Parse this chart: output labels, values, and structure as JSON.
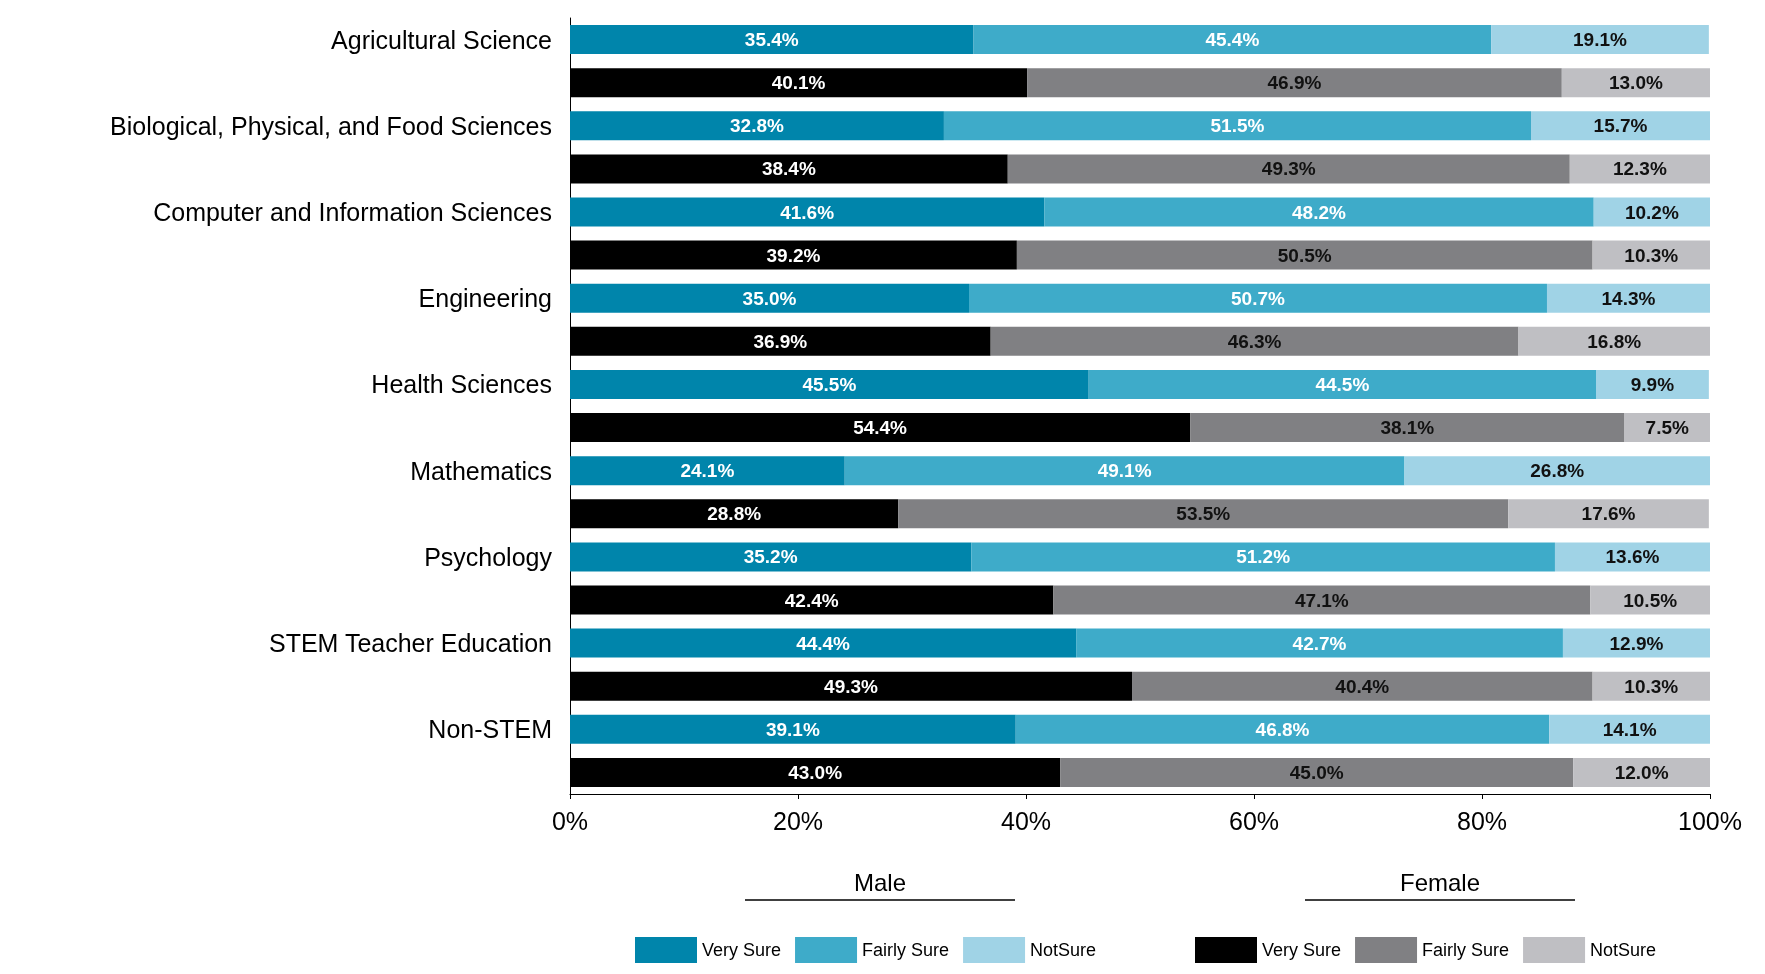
{
  "chart_data": {
    "type": "bar",
    "orientation": "horizontal",
    "stacked": true,
    "categories": [
      "Agricultural Science",
      null,
      "Biological, Physical, and Food Sciences",
      null,
      "Computer and Information Sciences",
      null,
      "Engineering",
      null,
      "Health Sciences",
      null,
      "Mathematics",
      null,
      "Psychology",
      null,
      "STEM Teacher Education",
      null,
      "Non-STEM",
      null
    ],
    "series": [
      {
        "name": "Very Sure",
        "color": "#0085ab",
        "values": [
          35.4,
          null,
          32.8,
          null,
          41.6,
          null,
          35.0,
          null,
          45.5,
          null,
          24.1,
          null,
          35.2,
          null,
          44.4,
          null,
          39.1,
          null
        ],
        "value_labels": [
          "35.4%",
          null,
          "32.8%",
          null,
          "41.6%",
          null,
          "35.0%",
          null,
          "45.5%",
          null,
          "24.1%",
          null,
          "35.2%",
          null,
          "44.4%",
          null,
          "39.1%",
          null
        ]
      },
      {
        "name": "Fairly Sure",
        "color": "#3eabc9",
        "values": [
          45.4,
          null,
          51.5,
          null,
          48.2,
          null,
          50.7,
          null,
          44.5,
          null,
          49.1,
          null,
          51.2,
          null,
          42.7,
          null,
          46.8,
          null
        ],
        "value_labels": [
          "45.4%",
          null,
          "51.5%",
          null,
          "48.2%",
          null,
          "50.7%",
          null,
          "44.5%",
          null,
          "49.1%",
          null,
          "51.2%",
          null,
          "42.7%",
          null,
          "46.8%",
          null
        ]
      },
      {
        "name": "NotSure",
        "color": "#a0d3e6",
        "values": [
          19.1,
          null,
          15.7,
          null,
          10.2,
          null,
          14.3,
          null,
          9.9,
          null,
          26.8,
          null,
          13.6,
          null,
          12.9,
          null,
          14.1,
          null
        ],
        "value_labels": [
          "19.1%",
          null,
          "15.7%",
          null,
          "10.2%",
          null,
          "14.3%",
          null,
          "9.9%",
          null,
          "26.8%",
          null,
          "13.6%",
          null,
          "12.9%",
          null,
          "14.1%",
          null
        ]
      },
      {
        "name": "Very Sure",
        "color": "#000000",
        "values": [
          null,
          40.1,
          null,
          38.4,
          null,
          39.2,
          null,
          36.9,
          null,
          54.4,
          null,
          28.8,
          null,
          42.4,
          null,
          49.3,
          null,
          43.0
        ],
        "value_labels": [
          null,
          "40.1%",
          null,
          "38.4%",
          null,
          "39.2%",
          null,
          "36.9%",
          null,
          "54.4%",
          null,
          "28.8%",
          null,
          "42.4%",
          null,
          "49.3%",
          null,
          "43.0%"
        ]
      },
      {
        "name": "Fairly Sure",
        "color": "#808083",
        "values": [
          null,
          46.9,
          null,
          49.3,
          null,
          50.5,
          null,
          46.3,
          null,
          38.1,
          null,
          53.5,
          null,
          47.1,
          null,
          40.4,
          null,
          45.0
        ],
        "value_labels": [
          null,
          "46.9%",
          null,
          "49.3%",
          null,
          "50.5%",
          null,
          "46.3%",
          null,
          "38.1%",
          null,
          "53.5%",
          null,
          "47.1%",
          null,
          "40.4%",
          null,
          "45.0%"
        ]
      },
      {
        "name": "NotSure",
        "color": "#bfbfc3",
        "values": [
          null,
          13.0,
          null,
          12.3,
          null,
          10.3,
          null,
          16.8,
          null,
          7.5,
          null,
          17.6,
          null,
          10.5,
          null,
          10.3,
          null,
          12.0
        ],
        "value_labels": [
          null,
          "13.0%",
          null,
          "12.3%",
          null,
          "10.3%",
          null,
          "16.8%",
          null,
          "7.5%",
          null,
          "17.6%",
          null,
          "10.5%",
          null,
          "10.3%",
          null,
          "12.0%"
        ]
      }
    ],
    "xlim": [
      0,
      100
    ],
    "xticks": [
      {
        "value": 0,
        "label": "0%"
      },
      {
        "value": 20,
        "label": "20%"
      },
      {
        "value": 40,
        "label": "40%"
      },
      {
        "value": 60,
        "label": "60%"
      },
      {
        "value": 80,
        "label": "80%"
      },
      {
        "value": 100,
        "label": "100%"
      }
    ],
    "annotations": [
      "Male",
      "Female"
    ],
    "legend": "bottom",
    "grid": false
  }
}
